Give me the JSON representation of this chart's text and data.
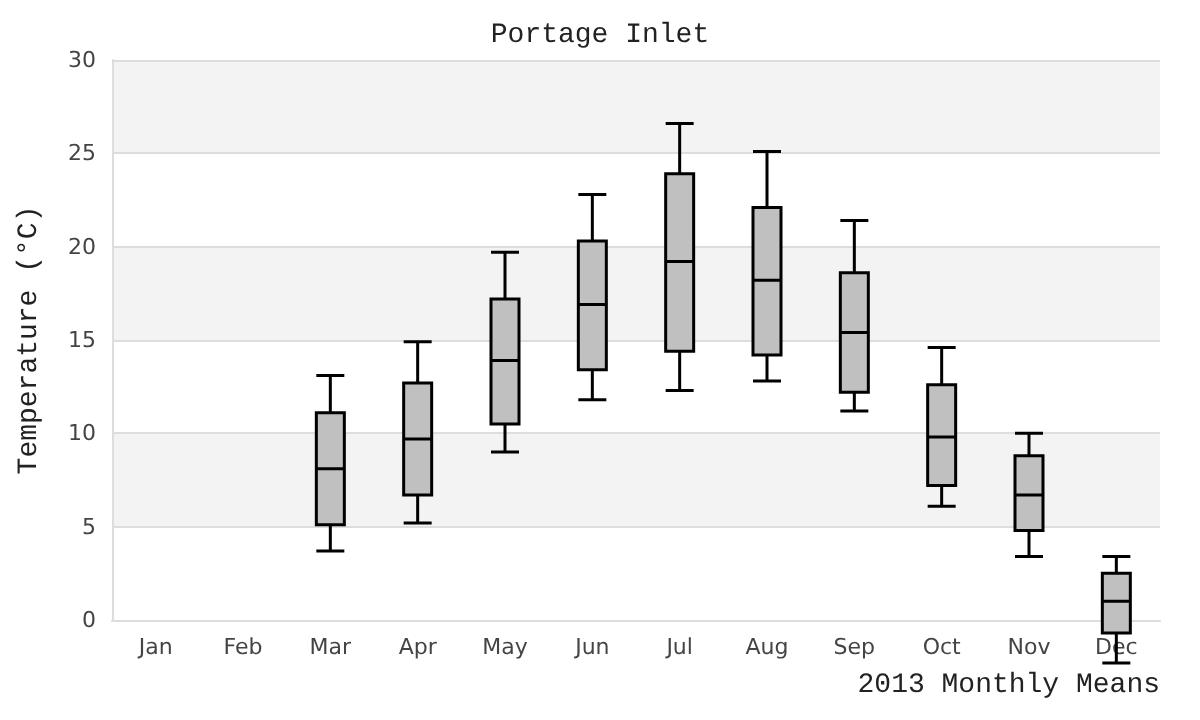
{
  "chart_data": {
    "type": "box",
    "title": "Portage Inlet",
    "xlabel": "2013 Monthly Means",
    "ylabel": "Temperature (°C)",
    "categories": [
      "Jan",
      "Feb",
      "Mar",
      "Apr",
      "May",
      "Jun",
      "Jul",
      "Aug",
      "Sep",
      "Oct",
      "Nov",
      "Dec"
    ],
    "boxes": [
      null,
      null,
      {
        "low": 3.7,
        "q1": 5.1,
        "median": 8.1,
        "q3": 11.1,
        "high": 13.1
      },
      {
        "low": 5.2,
        "q1": 6.7,
        "median": 9.7,
        "q3": 12.7,
        "high": 14.9
      },
      {
        "low": 9.0,
        "q1": 10.5,
        "median": 13.9,
        "q3": 17.2,
        "high": 19.7
      },
      {
        "low": 11.8,
        "q1": 13.4,
        "median": 16.9,
        "q3": 20.3,
        "high": 22.8
      },
      {
        "low": 12.3,
        "q1": 14.4,
        "median": 19.2,
        "q3": 23.9,
        "high": 26.6
      },
      {
        "low": 12.8,
        "q1": 14.2,
        "median": 18.2,
        "q3": 22.1,
        "high": 25.1
      },
      {
        "low": 11.2,
        "q1": 12.2,
        "median": 15.4,
        "q3": 18.6,
        "high": 21.4
      },
      {
        "low": 6.1,
        "q1": 7.2,
        "median": 9.8,
        "q3": 12.6,
        "high": 14.6
      },
      {
        "low": 3.4,
        "q1": 4.8,
        "median": 6.7,
        "q3": 8.8,
        "high": 10.0
      },
      {
        "low": -2.3,
        "q1": -0.7,
        "median": 1.0,
        "q3": 2.5,
        "high": 3.4
      }
    ],
    "color": "#c0c0c0",
    "ylim": [
      0,
      30
    ],
    "yticks": [
      0,
      5,
      10,
      15,
      20,
      25,
      30
    ],
    "grid": "y"
  }
}
